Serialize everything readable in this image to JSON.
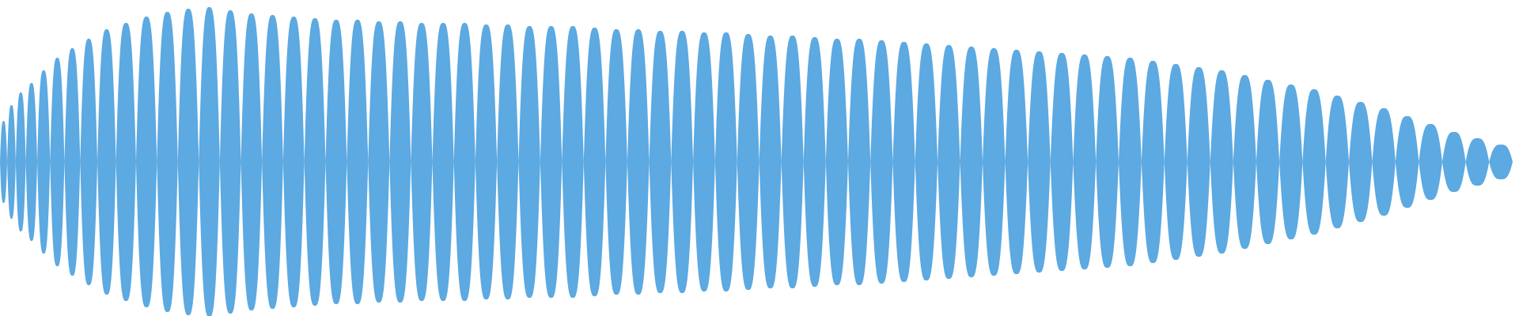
{
  "waveform": {
    "color": "#5DA9E1",
    "background": "#FFFFFF",
    "lobe_peak_fractions": [
      0.26,
      0.36,
      0.44,
      0.5,
      0.58,
      0.66,
      0.72,
      0.78,
      0.84,
      0.88,
      0.92,
      0.95,
      0.97,
      0.98,
      0.96,
      0.94,
      0.93,
      0.92,
      0.91,
      0.9,
      0.9,
      0.89,
      0.89,
      0.88,
      0.88,
      0.88,
      0.87,
      0.87,
      0.86,
      0.86,
      0.86,
      0.85,
      0.84,
      0.84,
      0.83,
      0.83,
      0.82,
      0.82,
      0.81,
      0.8,
      0.8,
      0.79,
      0.78,
      0.78,
      0.77,
      0.76,
      0.75,
      0.74,
      0.73,
      0.72,
      0.71,
      0.7,
      0.69,
      0.68,
      0.67,
      0.66,
      0.64,
      0.62,
      0.6,
      0.58,
      0.55,
      0.52,
      0.49,
      0.46,
      0.42,
      0.38,
      0.34,
      0.29,
      0.24,
      0.19,
      0.15,
      0.11
    ]
  }
}
